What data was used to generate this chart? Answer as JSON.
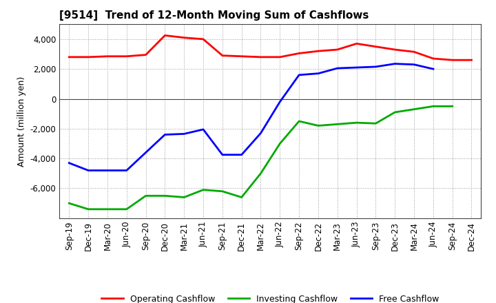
{
  "title": "[9514]  Trend of 12-Month Moving Sum of Cashflows",
  "ylabel": "Amount (million yen)",
  "background_color": "#ffffff",
  "plot_background": "#ffffff",
  "grid_color": "#999999",
  "xlabels": [
    "Sep-19",
    "Dec-19",
    "Mar-20",
    "Jun-20",
    "Sep-20",
    "Dec-20",
    "Mar-21",
    "Jun-21",
    "Sep-21",
    "Dec-21",
    "Mar-22",
    "Jun-22",
    "Sep-22",
    "Dec-22",
    "Mar-23",
    "Jun-23",
    "Sep-23",
    "Dec-23",
    "Mar-24",
    "Jun-24",
    "Sep-24",
    "Dec-24"
  ],
  "operating_cashflow": [
    2800,
    2800,
    2850,
    2850,
    2950,
    4250,
    4100,
    4000,
    2900,
    2850,
    2800,
    2800,
    3050,
    3200,
    3300,
    3700,
    3500,
    3300,
    3150,
    2700,
    2600,
    2600
  ],
  "investing_cashflow": [
    -7000,
    -7400,
    -7400,
    -7400,
    -6500,
    -6500,
    -6600,
    -6100,
    -6200,
    -6600,
    -5000,
    -3000,
    -1500,
    -1800,
    -1700,
    -1600,
    -1650,
    -900,
    -700,
    -500,
    -500,
    null
  ],
  "free_cashflow": [
    -4300,
    -4800,
    -4800,
    -4800,
    -3600,
    -2400,
    -2350,
    -2050,
    -3750,
    -3750,
    -2300,
    -200,
    1600,
    1700,
    2050,
    2100,
    2150,
    2350,
    2300,
    2000,
    null,
    null
  ],
  "ylim": [
    -8000,
    5000
  ],
  "yticks": [
    -6000,
    -4000,
    -2000,
    0,
    2000,
    4000
  ],
  "line_colors": {
    "operating": "#ff0000",
    "investing": "#00aa00",
    "free": "#0000ff"
  },
  "line_width": 2.0,
  "legend_labels": [
    "Operating Cashflow",
    "Investing Cashflow",
    "Free Cashflow"
  ],
  "tick_fontsize": 8.5,
  "ylabel_fontsize": 9,
  "title_fontsize": 11
}
